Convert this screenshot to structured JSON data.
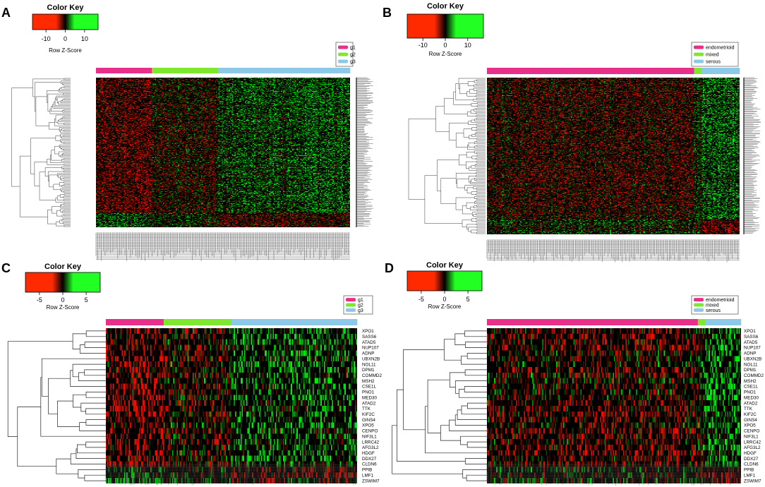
{
  "chart_data": [
    {
      "panel": "A",
      "type": "heatmap",
      "color_key": {
        "title": "Color Key",
        "label": "Row Z-Score",
        "ticks": [
          "-10",
          "0",
          "10"
        ],
        "range": [
          -17,
          17
        ],
        "colors": [
          "#ff2a00",
          "#000000",
          "#22ff22"
        ]
      },
      "legend": [
        {
          "name": "g1",
          "color": "#e8308a"
        },
        {
          "name": "g2",
          "color": "#7ee82e"
        },
        {
          "name": "g3",
          "color": "#8cc9e8"
        }
      ],
      "column_groups": [
        {
          "name": "g1",
          "fraction": 0.22
        },
        {
          "name": "g2",
          "fraction": 0.26
        },
        {
          "name": "g3",
          "fraction": 0.52
        }
      ],
      "rows": 300,
      "columns": 220,
      "row_labels_legible": false
    },
    {
      "panel": "B",
      "type": "heatmap",
      "color_key": {
        "title": "Color Key",
        "label": "Row Z-Score",
        "ticks": [
          "-10",
          "0",
          "10"
        ],
        "range": [
          -17,
          17
        ],
        "colors": [
          "#ff2a00",
          "#000000",
          "#22ff22"
        ]
      },
      "legend": [
        {
          "name": "endometrioid",
          "color": "#e8308a"
        },
        {
          "name": "mixed",
          "color": "#7ee82e"
        },
        {
          "name": "serous",
          "color": "#8cc9e8"
        }
      ],
      "column_groups": [
        {
          "name": "endometrioid",
          "fraction": 0.82
        },
        {
          "name": "mixed",
          "fraction": 0.03
        },
        {
          "name": "serous",
          "fraction": 0.15
        }
      ],
      "rows": 300,
      "columns": 220,
      "row_labels_legible": false
    },
    {
      "panel": "C",
      "type": "heatmap",
      "color_key": {
        "title": "Color Key",
        "label": "Row Z-Score",
        "ticks": [
          "-5",
          "0",
          "5"
        ],
        "range": [
          -8,
          8
        ],
        "colors": [
          "#ff2a00",
          "#000000",
          "#22ff22"
        ]
      },
      "legend": [
        {
          "name": "g1",
          "color": "#e8308a"
        },
        {
          "name": "g2",
          "color": "#7ee82e"
        },
        {
          "name": "g3",
          "color": "#8cc9e8"
        }
      ],
      "column_groups": [
        {
          "name": "g1",
          "fraction": 0.23
        },
        {
          "name": "g2",
          "fraction": 0.27
        },
        {
          "name": "g3",
          "fraction": 0.5
        }
      ],
      "genes": [
        "XPO1",
        "SASS6",
        "ATAD5",
        "NUP107",
        "ADNP",
        "UBXN2B",
        "NOL11",
        "DPM1",
        "COMMD2",
        "MSH2",
        "CSE1L",
        "PNO1",
        "MED30",
        "ATAD2",
        "TTK",
        "KIF2C",
        "GINS4",
        "XPO5",
        "CENPO",
        "NIF3L1",
        "LRRC42",
        "AFG3L2",
        "HDGF",
        "DDX27",
        "CLDN6",
        "PPIB",
        "LMF1",
        "ZSWIM7"
      ],
      "columns": 220
    },
    {
      "panel": "D",
      "type": "heatmap",
      "color_key": {
        "title": "Color Key",
        "label": "Row Z-Score",
        "ticks": [
          "-5",
          "0",
          "5"
        ],
        "range": [
          -8,
          8
        ],
        "colors": [
          "#ff2a00",
          "#000000",
          "#22ff22"
        ]
      },
      "legend": [
        {
          "name": "endometrioid",
          "color": "#e8308a"
        },
        {
          "name": "mixed",
          "color": "#7ee82e"
        },
        {
          "name": "serous",
          "color": "#8cc9e8"
        }
      ],
      "column_groups": [
        {
          "name": "endometrioid",
          "fraction": 0.83
        },
        {
          "name": "mixed",
          "fraction": 0.03
        },
        {
          "name": "serous",
          "fraction": 0.14
        }
      ],
      "genes": [
        "XPO1",
        "SASS6",
        "ATAD5",
        "NUP107",
        "ADNP",
        "UBXN2B",
        "NOL11",
        "DPM1",
        "COMMD2",
        "MSH2",
        "CSE1L",
        "PNO1",
        "MED30",
        "ATAD2",
        "TTK",
        "KIF2C",
        "GINS4",
        "XPO5",
        "CENPO",
        "NIF3L1",
        "LRRC42",
        "AFG3L2",
        "HDGF",
        "DDX27",
        "CLDN6",
        "PPIB",
        "LMF1",
        "ZSWIM7"
      ],
      "columns": 220
    }
  ]
}
